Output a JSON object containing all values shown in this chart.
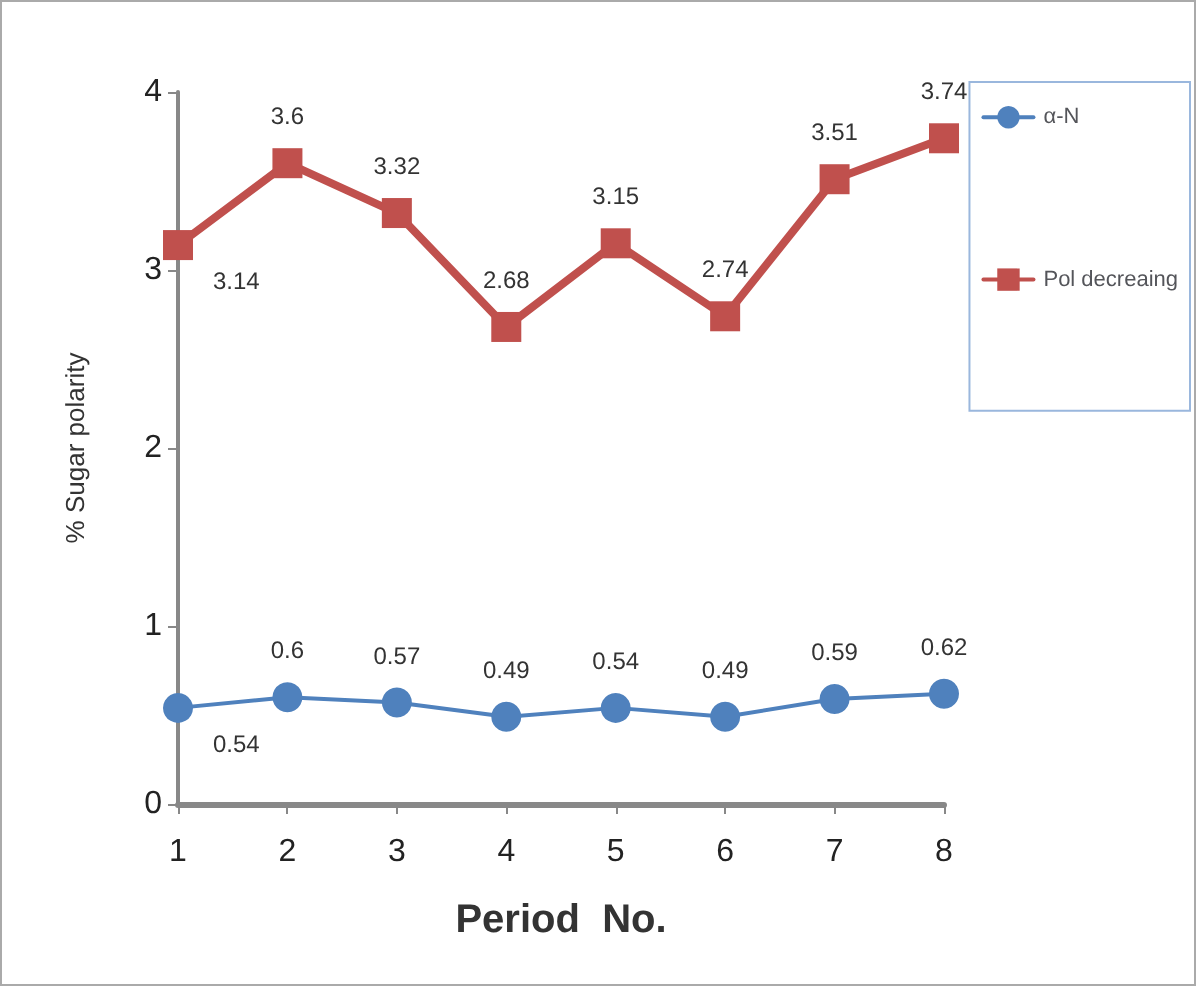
{
  "chart_data": {
    "type": "line",
    "xlabel": "Period  No.",
    "ylabel": "% Sugar polarity",
    "categories": [
      "1",
      "2",
      "3",
      "4",
      "5",
      "6",
      "7",
      "8"
    ],
    "series": [
      {
        "name": "α-N",
        "color": "#4f81bd",
        "marker": "circle",
        "values": [
          0.54,
          0.6,
          0.57,
          0.49,
          0.54,
          0.49,
          0.59,
          0.62
        ]
      },
      {
        "name": "Pol decreaing",
        "color": "#c0504d",
        "marker": "square",
        "values": [
          3.14,
          3.6,
          3.32,
          2.68,
          3.15,
          2.74,
          3.51,
          3.74
        ]
      }
    ],
    "ylim": [
      0,
      4
    ],
    "yticks": [
      0,
      1,
      2,
      3,
      4
    ],
    "grid": false,
    "legend": "right",
    "data_labels": true,
    "line_style": "solid"
  }
}
